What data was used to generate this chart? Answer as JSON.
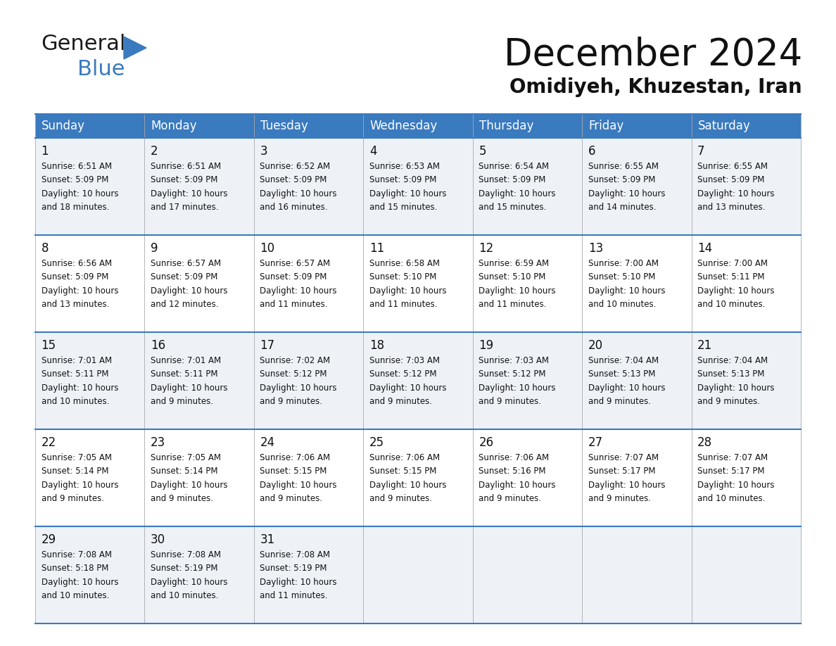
{
  "title": "December 2024",
  "subtitle": "Omidiyeh, Khuzestan, Iran",
  "header_bg": "#3a7abf",
  "header_text": "#ffffff",
  "row_bg_even": "#eef2f7",
  "row_bg_odd": "#ffffff",
  "grid_line_color": "#3a7abf",
  "cell_border_color": "#b0b8c8",
  "day_names": [
    "Sunday",
    "Monday",
    "Tuesday",
    "Wednesday",
    "Thursday",
    "Friday",
    "Saturday"
  ],
  "calendar": [
    [
      {
        "day": 1,
        "sunrise": "6:51 AM",
        "sunset": "5:09 PM",
        "daylight": "10 hours and 18 minutes."
      },
      {
        "day": 2,
        "sunrise": "6:51 AM",
        "sunset": "5:09 PM",
        "daylight": "10 hours and 17 minutes."
      },
      {
        "day": 3,
        "sunrise": "6:52 AM",
        "sunset": "5:09 PM",
        "daylight": "10 hours and 16 minutes."
      },
      {
        "day": 4,
        "sunrise": "6:53 AM",
        "sunset": "5:09 PM",
        "daylight": "10 hours and 15 minutes."
      },
      {
        "day": 5,
        "sunrise": "6:54 AM",
        "sunset": "5:09 PM",
        "daylight": "10 hours and 15 minutes."
      },
      {
        "day": 6,
        "sunrise": "6:55 AM",
        "sunset": "5:09 PM",
        "daylight": "10 hours and 14 minutes."
      },
      {
        "day": 7,
        "sunrise": "6:55 AM",
        "sunset": "5:09 PM",
        "daylight": "10 hours and 13 minutes."
      }
    ],
    [
      {
        "day": 8,
        "sunrise": "6:56 AM",
        "sunset": "5:09 PM",
        "daylight": "10 hours and 13 minutes."
      },
      {
        "day": 9,
        "sunrise": "6:57 AM",
        "sunset": "5:09 PM",
        "daylight": "10 hours and 12 minutes."
      },
      {
        "day": 10,
        "sunrise": "6:57 AM",
        "sunset": "5:09 PM",
        "daylight": "10 hours and 11 minutes."
      },
      {
        "day": 11,
        "sunrise": "6:58 AM",
        "sunset": "5:10 PM",
        "daylight": "10 hours and 11 minutes."
      },
      {
        "day": 12,
        "sunrise": "6:59 AM",
        "sunset": "5:10 PM",
        "daylight": "10 hours and 11 minutes."
      },
      {
        "day": 13,
        "sunrise": "7:00 AM",
        "sunset": "5:10 PM",
        "daylight": "10 hours and 10 minutes."
      },
      {
        "day": 14,
        "sunrise": "7:00 AM",
        "sunset": "5:11 PM",
        "daylight": "10 hours and 10 minutes."
      }
    ],
    [
      {
        "day": 15,
        "sunrise": "7:01 AM",
        "sunset": "5:11 PM",
        "daylight": "10 hours and 10 minutes."
      },
      {
        "day": 16,
        "sunrise": "7:01 AM",
        "sunset": "5:11 PM",
        "daylight": "10 hours and 9 minutes."
      },
      {
        "day": 17,
        "sunrise": "7:02 AM",
        "sunset": "5:12 PM",
        "daylight": "10 hours and 9 minutes."
      },
      {
        "day": 18,
        "sunrise": "7:03 AM",
        "sunset": "5:12 PM",
        "daylight": "10 hours and 9 minutes."
      },
      {
        "day": 19,
        "sunrise": "7:03 AM",
        "sunset": "5:12 PM",
        "daylight": "10 hours and 9 minutes."
      },
      {
        "day": 20,
        "sunrise": "7:04 AM",
        "sunset": "5:13 PM",
        "daylight": "10 hours and 9 minutes."
      },
      {
        "day": 21,
        "sunrise": "7:04 AM",
        "sunset": "5:13 PM",
        "daylight": "10 hours and 9 minutes."
      }
    ],
    [
      {
        "day": 22,
        "sunrise": "7:05 AM",
        "sunset": "5:14 PM",
        "daylight": "10 hours and 9 minutes."
      },
      {
        "day": 23,
        "sunrise": "7:05 AM",
        "sunset": "5:14 PM",
        "daylight": "10 hours and 9 minutes."
      },
      {
        "day": 24,
        "sunrise": "7:06 AM",
        "sunset": "5:15 PM",
        "daylight": "10 hours and 9 minutes."
      },
      {
        "day": 25,
        "sunrise": "7:06 AM",
        "sunset": "5:15 PM",
        "daylight": "10 hours and 9 minutes."
      },
      {
        "day": 26,
        "sunrise": "7:06 AM",
        "sunset": "5:16 PM",
        "daylight": "10 hours and 9 minutes."
      },
      {
        "day": 27,
        "sunrise": "7:07 AM",
        "sunset": "5:17 PM",
        "daylight": "10 hours and 9 minutes."
      },
      {
        "day": 28,
        "sunrise": "7:07 AM",
        "sunset": "5:17 PM",
        "daylight": "10 hours and 10 minutes."
      }
    ],
    [
      {
        "day": 29,
        "sunrise": "7:08 AM",
        "sunset": "5:18 PM",
        "daylight": "10 hours and 10 minutes."
      },
      {
        "day": 30,
        "sunrise": "7:08 AM",
        "sunset": "5:19 PM",
        "daylight": "10 hours and 10 minutes."
      },
      {
        "day": 31,
        "sunrise": "7:08 AM",
        "sunset": "5:19 PM",
        "daylight": "10 hours and 11 minutes."
      },
      null,
      null,
      null,
      null
    ]
  ],
  "logo_text_general": "General",
  "logo_text_blue": "Blue",
  "logo_color_general": "#1a1a1a",
  "logo_color_blue": "#3a7abf",
  "logo_triangle_color": "#3a7abf",
  "title_fontsize": 38,
  "subtitle_fontsize": 20,
  "header_fontsize": 12,
  "day_num_fontsize": 12,
  "cell_text_fontsize": 8.5
}
